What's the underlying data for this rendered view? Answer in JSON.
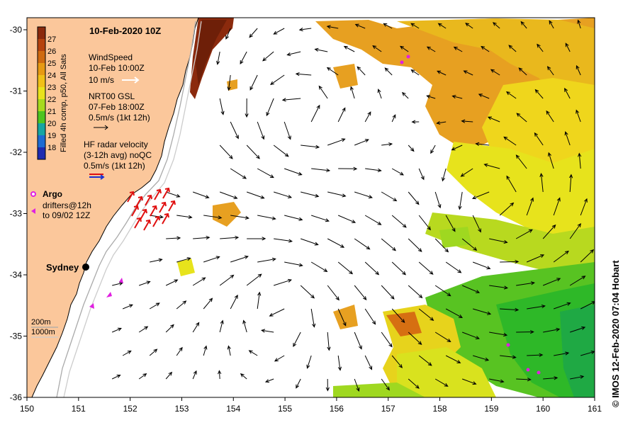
{
  "map": {
    "title": "10-Feb-2020 10Z",
    "colorbar": {
      "label": "Filled 4h comp, p50, All Sats",
      "ticks": [
        "27",
        "26",
        "25",
        "24",
        "23",
        "22",
        "21",
        "20",
        "19",
        "18"
      ],
      "colors": [
        "#8b2a0d",
        "#b5430f",
        "#cf6a10",
        "#e79a13",
        "#f0c018",
        "#e9e21c",
        "#a7da1e",
        "#4ec520",
        "#17a5a2",
        "#1e6bd2",
        "#1e2bb0"
      ]
    },
    "legend": {
      "windspeed": [
        "WindSpeed",
        "10-Feb 10:00Z",
        "10 m/s"
      ],
      "gsl": [
        "NRT00 GSL",
        "07-Feb 18:00Z",
        "0.5m/s (1kt 12h)"
      ],
      "hf": [
        "HF radar velocity",
        "(3-12h avg) noQC",
        "0.5m/s (1kt 12h)"
      ],
      "argo": "Argo",
      "drifters": [
        "drifters@12h",
        "to 09/02 12Z"
      ],
      "depth": [
        "200m",
        "1000m"
      ]
    },
    "place": "Sydney",
    "x_ticks": [
      "150",
      "151",
      "152",
      "153",
      "154",
      "155",
      "156",
      "157",
      "158",
      "159",
      "160",
      "161"
    ],
    "y_ticks": [
      "-30",
      "-31",
      "-32",
      "-33",
      "-34",
      "-35",
      "-36"
    ],
    "copyright": "© IMOS 12-Feb-2020 07:04 Hobart",
    "colors": {
      "land": "#fbc79b",
      "warm": "#e79a13",
      "hot": "#8b2a0d",
      "green": "#55c221",
      "yellow": "#e9e21c",
      "hf_arrow": "#e01010",
      "argo": "#e020e0"
    }
  }
}
